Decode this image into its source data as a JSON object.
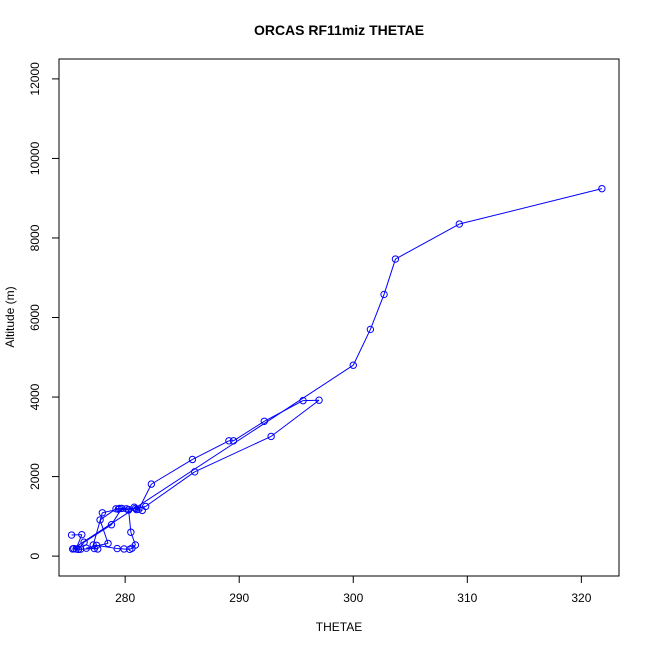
{
  "chart_data": {
    "type": "line",
    "title": "ORCAS RF11miz THETAE",
    "xlabel": "THETAE",
    "ylabel": "Altitude (m)",
    "xlim": [
      274.2,
      323.3
    ],
    "ylim": [
      -500,
      12500
    ],
    "x_ticks": [
      280,
      290,
      300,
      310,
      320
    ],
    "y_ticks": [
      0,
      2000,
      4000,
      6000,
      8000,
      10000,
      12000
    ],
    "grid": false,
    "legend": "none",
    "colors": {
      "series": "#0000ff",
      "axis": "#000000"
    },
    "series": [
      {
        "marker": "open-circle",
        "x": [
          275.3,
          276.2,
          275.7,
          276.1,
          275.5,
          275.9,
          277.3,
          277.6,
          276.6,
          278.5,
          277.8,
          279.2,
          279.5,
          280.1,
          280.9,
          281.5,
          281.0,
          280.8,
          281.2,
          282.3,
          285.9,
          289.1,
          289.5,
          292.2,
          295.6,
          297.0,
          292.8,
          286.1,
          281.8,
          280.3,
          279.4,
          278.0,
          277.2,
          277.5,
          279.3,
          279.9,
          280.4,
          280.6,
          280.9,
          280.5,
          280.3,
          279.7,
          278.8,
          276.4,
          275.9,
          275.4,
          300.0,
          301.5,
          302.7,
          303.7,
          309.3,
          321.8
        ],
        "y": [
          530,
          540,
          180,
          175,
          190,
          170,
          190,
          180,
          200,
          320,
          910,
          1190,
          1200,
          1190,
          1200,
          1150,
          1170,
          1230,
          1180,
          1810,
          2430,
          2900,
          2900,
          3390,
          3910,
          3920,
          3010,
          2120,
          1250,
          1160,
          1180,
          1090,
          280,
          270,
          190,
          180,
          170,
          200,
          280,
          600,
          1170,
          1200,
          790,
          350,
          170,
          180,
          4800,
          5700,
          6580,
          7470,
          8350,
          9240
        ]
      }
    ]
  }
}
